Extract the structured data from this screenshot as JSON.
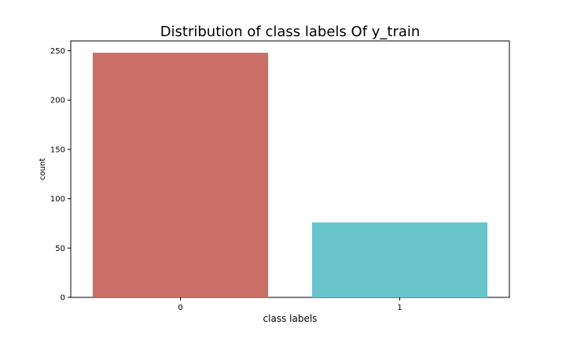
{
  "chart_data": {
    "type": "bar",
    "title": "Distribution of class labels Of y_train",
    "xlabel": "class labels",
    "ylabel": "count",
    "categories": [
      "0",
      "1"
    ],
    "values": [
      248,
      76
    ],
    "colors": [
      "#c96f66",
      "#69c5cc"
    ],
    "ylim": [
      0,
      260
    ],
    "yticks": [
      0,
      50,
      100,
      150,
      200,
      250
    ],
    "grid": false,
    "legend": "none"
  }
}
